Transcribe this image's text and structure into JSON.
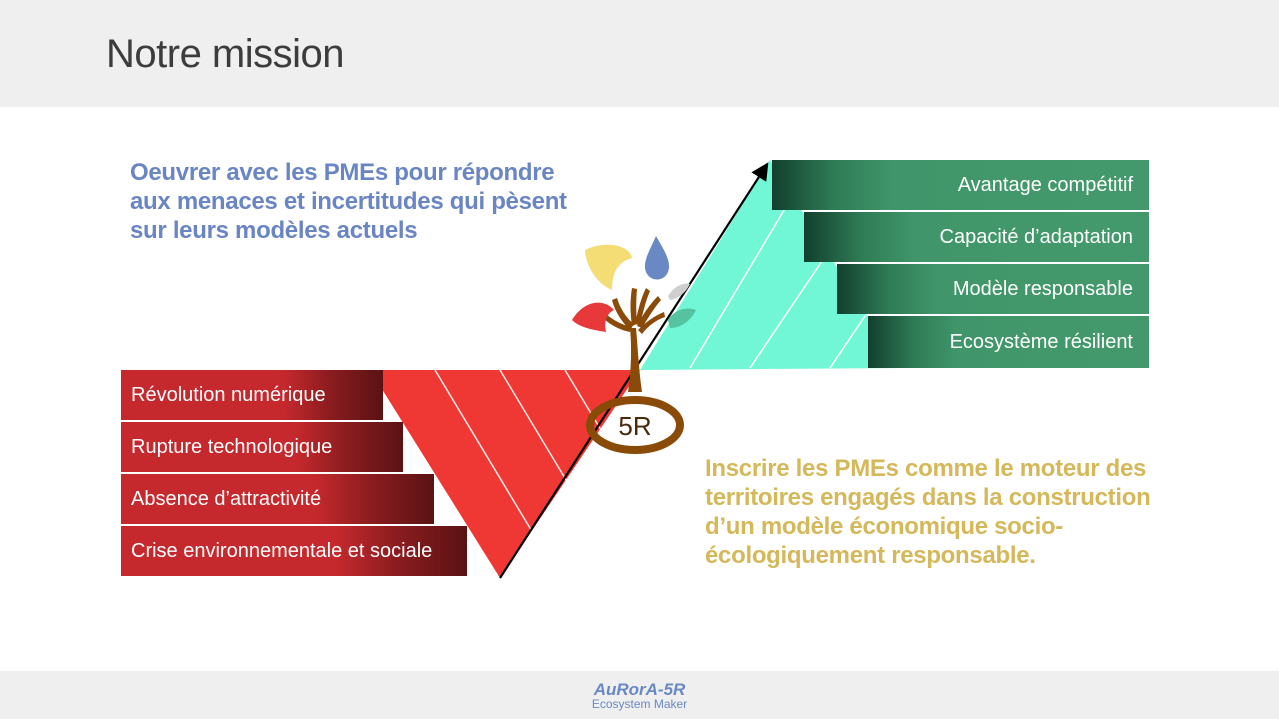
{
  "title": "Notre mission",
  "statement_top": "Oeuvrer avec les PMEs pour répondre aux menaces et incertitudes qui pèsent sur leurs modèles actuels",
  "statement_bottom": "Inscrire les PMEs comme le moteur des territoires engagés dans la construction d’un modèle économique socio-écologiquement responsable.",
  "threats": [
    "Révolution numérique",
    "Rupture technologique",
    "Absence d’attractivité",
    "Crise environnementale et sociale"
  ],
  "outcomes": [
    "Avantage compétitif",
    "Capacité d’adaptation",
    "Modèle responsable",
    "Ecosystème résilient"
  ],
  "center_label": "5R",
  "logo": {
    "name": "AuRorA-5R",
    "tagline": "Ecosystem Maker"
  },
  "colors": {
    "red": "#ef3834",
    "mint": "#71f7d6",
    "green": "#44996c",
    "tree": "#8a4a08",
    "blue_text": "#6a85c3",
    "gold_text": "#d4b85a"
  }
}
